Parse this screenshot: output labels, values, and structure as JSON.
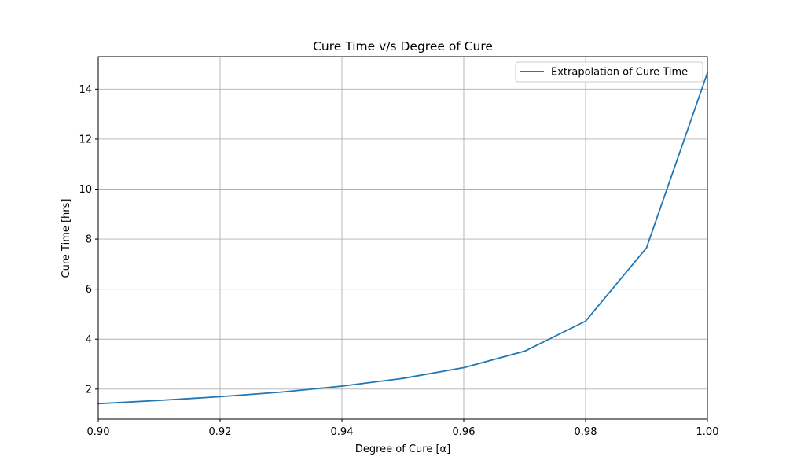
{
  "chart_data": {
    "type": "line",
    "title": "Cure Time v/s Degree of Cure",
    "xlabel": "Degree of Cure [α]",
    "ylabel": "Cure Time [hrs]",
    "xlim": [
      0.9,
      1.0
    ],
    "ylim": [
      0.8,
      15.3
    ],
    "xticks": [
      "0.90",
      "0.92",
      "0.94",
      "0.96",
      "0.98",
      "1.00"
    ],
    "yticks": [
      "2",
      "4",
      "6",
      "8",
      "10",
      "12",
      "14"
    ],
    "grid": true,
    "legend_position": "top-right",
    "colors": {
      "series": "#1f77b4",
      "grid": "#b0b0b0",
      "axes": "#000000"
    },
    "series": [
      {
        "name": "Extrapolation of Cure Time",
        "x": [
          0.9,
          0.91,
          0.92,
          0.93,
          0.94,
          0.95,
          0.96,
          0.97,
          0.98,
          0.99,
          1.0
        ],
        "y": [
          1.42,
          1.55,
          1.7,
          1.88,
          2.12,
          2.43,
          2.86,
          3.52,
          4.72,
          7.65,
          14.65
        ]
      }
    ]
  }
}
